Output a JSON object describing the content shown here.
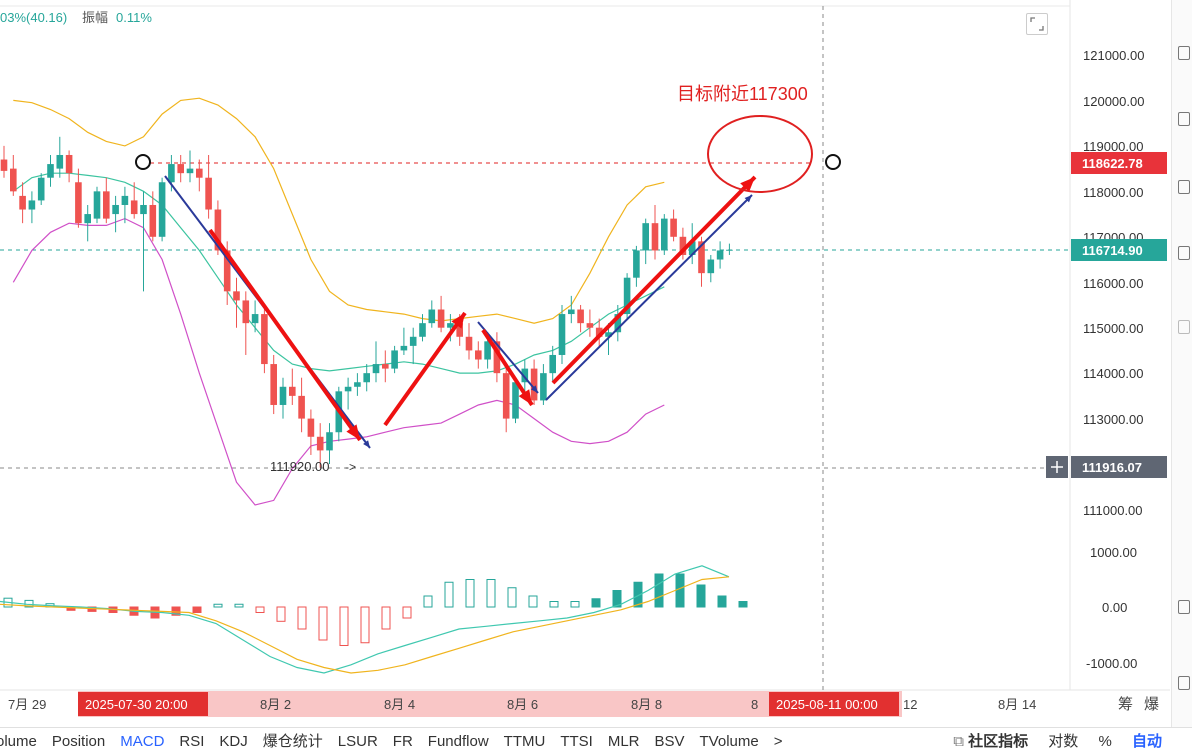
{
  "header": {
    "change_text": "03%(40.16)",
    "amplitude_label": "振幅",
    "amplitude_value": "0.11%"
  },
  "annotation": {
    "target_text": "目标附近117300",
    "low_marker": "111920.00"
  },
  "price_axis": {
    "labels": [
      "121000.00",
      "120000.00",
      "119000.00",
      "118000.00",
      "117000.00",
      "116000.00",
      "115000.00",
      "114000.00",
      "113000.00",
      "111000.00"
    ]
  },
  "macd_axis": {
    "labels": [
      "1000.00",
      "0.00",
      "-1000.00"
    ]
  },
  "badges": {
    "red_level": "118622.78",
    "current_price": "116714.90",
    "crosshair_price": "111916.07",
    "date_left": "2025-07-30 20:00",
    "date_right": "2025-08-11 00:00"
  },
  "date_axis": {
    "labels": [
      "7月 29",
      "8月 2",
      "8月 4",
      "8月 6",
      "8月 8",
      "8",
      "12",
      "8月 14"
    ],
    "right_icons": [
      "筹",
      "爆"
    ]
  },
  "indicator_tabs": [
    "olume",
    "Position",
    "MACD",
    "RSI",
    "KDJ",
    "爆仓统计",
    "LSUR",
    "FR",
    "Fundflow",
    "TTMU",
    "TTSI",
    "MLR",
    "BSV",
    "TVolume",
    ">"
  ],
  "active_tab": "MACD",
  "bottom_right": {
    "community": "社区指标",
    "log": "对数",
    "percent": "%",
    "auto": "自动"
  },
  "colors": {
    "up": "#26a69a",
    "down": "#ef5350",
    "boll_upper": "#f0b41e",
    "boll_mid": "#3cc4a0",
    "boll_lower": "#d050c8",
    "arrow_red": "#ee1111",
    "arrow_blue": "#2a3a9a",
    "badge_red": "#e8333a",
    "badge_green": "#26a69a",
    "badge_gray": "#5f6673",
    "date_badge": "#e23030",
    "date_band": "#f9c6c6",
    "macd_dif": "#40c8b0",
    "macd_dea": "#f0b41e"
  },
  "chart_data": {
    "type": "candlestick",
    "x_range": [
      "2025-07-29",
      "2025-08-14"
    ],
    "y_range": [
      110500,
      121500
    ],
    "candles": [
      {
        "o": 118700,
        "h": 119000,
        "l": 118300,
        "c": 118450
      },
      {
        "o": 118500,
        "h": 118800,
        "l": 117900,
        "c": 118000
      },
      {
        "o": 117900,
        "h": 118200,
        "l": 117300,
        "c": 117600
      },
      {
        "o": 117600,
        "h": 118000,
        "l": 117300,
        "c": 117800
      },
      {
        "o": 117800,
        "h": 118400,
        "l": 117700,
        "c": 118300
      },
      {
        "o": 118300,
        "h": 118800,
        "l": 118100,
        "c": 118600
      },
      {
        "o": 118500,
        "h": 119200,
        "l": 118300,
        "c": 118800
      },
      {
        "o": 118800,
        "h": 118900,
        "l": 118200,
        "c": 118400
      },
      {
        "o": 118200,
        "h": 118500,
        "l": 117200,
        "c": 117300
      },
      {
        "o": 117300,
        "h": 117700,
        "l": 116900,
        "c": 117500
      },
      {
        "o": 117400,
        "h": 118100,
        "l": 117300,
        "c": 118000
      },
      {
        "o": 118000,
        "h": 118300,
        "l": 117300,
        "c": 117400
      },
      {
        "o": 117500,
        "h": 117900,
        "l": 117100,
        "c": 117700
      },
      {
        "o": 117700,
        "h": 118100,
        "l": 117300,
        "c": 117900
      },
      {
        "o": 117800,
        "h": 118200,
        "l": 117400,
        "c": 117500
      },
      {
        "o": 117500,
        "h": 118000,
        "l": 115800,
        "c": 117700
      },
      {
        "o": 117700,
        "h": 118000,
        "l": 116900,
        "c": 117000
      },
      {
        "o": 117000,
        "h": 118300,
        "l": 116900,
        "c": 118200
      },
      {
        "o": 118200,
        "h": 118800,
        "l": 118000,
        "c": 118600
      },
      {
        "o": 118600,
        "h": 118800,
        "l": 118200,
        "c": 118400
      },
      {
        "o": 118400,
        "h": 118900,
        "l": 118200,
        "c": 118500
      },
      {
        "o": 118500,
        "h": 118700,
        "l": 118000,
        "c": 118300
      },
      {
        "o": 118300,
        "h": 118800,
        "l": 117400,
        "c": 117600
      },
      {
        "o": 117600,
        "h": 117800,
        "l": 116600,
        "c": 116700
      },
      {
        "o": 116700,
        "h": 116900,
        "l": 115500,
        "c": 115800
      },
      {
        "o": 115800,
        "h": 116100,
        "l": 115000,
        "c": 115600
      },
      {
        "o": 115600,
        "h": 115800,
        "l": 114400,
        "c": 115100
      },
      {
        "o": 115100,
        "h": 115600,
        "l": 114900,
        "c": 115300
      },
      {
        "o": 115300,
        "h": 115500,
        "l": 114000,
        "c": 114200
      },
      {
        "o": 114200,
        "h": 114400,
        "l": 113100,
        "c": 113300
      },
      {
        "o": 113300,
        "h": 113900,
        "l": 113000,
        "c": 113700
      },
      {
        "o": 113700,
        "h": 114100,
        "l": 113300,
        "c": 113500
      },
      {
        "o": 113500,
        "h": 113900,
        "l": 112700,
        "c": 113000
      },
      {
        "o": 113000,
        "h": 113200,
        "l": 112200,
        "c": 112600
      },
      {
        "o": 112600,
        "h": 112900,
        "l": 111920,
        "c": 112300
      },
      {
        "o": 112300,
        "h": 112900,
        "l": 112000,
        "c": 112700
      },
      {
        "o": 112700,
        "h": 113700,
        "l": 112500,
        "c": 113600
      },
      {
        "o": 113600,
        "h": 113900,
        "l": 113200,
        "c": 113700
      },
      {
        "o": 113700,
        "h": 114000,
        "l": 113500,
        "c": 113800
      },
      {
        "o": 113800,
        "h": 114200,
        "l": 113600,
        "c": 114000
      },
      {
        "o": 114000,
        "h": 114700,
        "l": 113800,
        "c": 114200
      },
      {
        "o": 114200,
        "h": 114500,
        "l": 113800,
        "c": 114100
      },
      {
        "o": 114100,
        "h": 114600,
        "l": 114000,
        "c": 114500
      },
      {
        "o": 114500,
        "h": 115000,
        "l": 114400,
        "c": 114600
      },
      {
        "o": 114600,
        "h": 115000,
        "l": 114200,
        "c": 114800
      },
      {
        "o": 114800,
        "h": 115300,
        "l": 114700,
        "c": 115100
      },
      {
        "o": 115100,
        "h": 115600,
        "l": 115000,
        "c": 115400
      },
      {
        "o": 115400,
        "h": 115700,
        "l": 114900,
        "c": 115000
      },
      {
        "o": 115000,
        "h": 115300,
        "l": 114700,
        "c": 115100
      },
      {
        "o": 115100,
        "h": 115300,
        "l": 114600,
        "c": 114800
      },
      {
        "o": 114800,
        "h": 115100,
        "l": 114300,
        "c": 114500
      },
      {
        "o": 114500,
        "h": 114700,
        "l": 114100,
        "c": 114300
      },
      {
        "o": 114300,
        "h": 114900,
        "l": 114100,
        "c": 114700
      },
      {
        "o": 114700,
        "h": 114900,
        "l": 113800,
        "c": 114000
      },
      {
        "o": 114000,
        "h": 114200,
        "l": 112700,
        "c": 113000
      },
      {
        "o": 113000,
        "h": 113900,
        "l": 112900,
        "c": 113800
      },
      {
        "o": 113800,
        "h": 114300,
        "l": 113500,
        "c": 114100
      },
      {
        "o": 114100,
        "h": 114300,
        "l": 113300,
        "c": 113400
      },
      {
        "o": 113400,
        "h": 114200,
        "l": 113300,
        "c": 114000
      },
      {
        "o": 114000,
        "h": 114600,
        "l": 113800,
        "c": 114400
      },
      {
        "o": 114400,
        "h": 115500,
        "l": 114200,
        "c": 115300
      },
      {
        "o": 115300,
        "h": 115700,
        "l": 115100,
        "c": 115400
      },
      {
        "o": 115400,
        "h": 115500,
        "l": 114900,
        "c": 115100
      },
      {
        "o": 115100,
        "h": 115400,
        "l": 114800,
        "c": 115000
      },
      {
        "o": 115000,
        "h": 115200,
        "l": 114600,
        "c": 114800
      },
      {
        "o": 114800,
        "h": 115100,
        "l": 114400,
        "c": 114900
      },
      {
        "o": 114900,
        "h": 115500,
        "l": 114700,
        "c": 115300
      },
      {
        "o": 115300,
        "h": 116200,
        "l": 115200,
        "c": 116100
      },
      {
        "o": 116100,
        "h": 116800,
        "l": 115900,
        "c": 116700
      },
      {
        "o": 116700,
        "h": 117400,
        "l": 116400,
        "c": 117300
      },
      {
        "o": 117300,
        "h": 117700,
        "l": 116500,
        "c": 116700
      },
      {
        "o": 116700,
        "h": 117500,
        "l": 116600,
        "c": 117400
      },
      {
        "o": 117400,
        "h": 117600,
        "l": 116900,
        "c": 117000
      },
      {
        "o": 117000,
        "h": 117200,
        "l": 116500,
        "c": 116600
      },
      {
        "o": 116600,
        "h": 117300,
        "l": 116400,
        "c": 116900
      },
      {
        "o": 116900,
        "h": 117000,
        "l": 115900,
        "c": 116200
      },
      {
        "o": 116200,
        "h": 116600,
        "l": 116000,
        "c": 116500
      },
      {
        "o": 116500,
        "h": 116900,
        "l": 116300,
        "c": 116700
      },
      {
        "o": 116700,
        "h": 116850,
        "l": 116600,
        "c": 116715
      }
    ],
    "boll_upper": [
      120000,
      119950,
      119800,
      119600,
      119300,
      119100,
      119000,
      119200,
      119700,
      120000,
      120050,
      119900,
      119600,
      119200,
      118500,
      117500,
      116500,
      115800,
      115500,
      115400,
      115350,
      115300,
      115200,
      115150,
      115200,
      115250,
      115300,
      115200,
      115100,
      115200,
      115500,
      116200,
      117000,
      117700,
      118100,
      118200
    ],
    "boll_mid": [
      118000,
      118300,
      118400,
      118400,
      118350,
      118300,
      118200,
      118000,
      117700,
      117200,
      116700,
      116100,
      115500,
      115000,
      114500,
      114200,
      114100,
      114050,
      114100,
      114150,
      114200,
      114250,
      114200,
      114100,
      114000,
      114000,
      114050,
      114200,
      114400,
      114500,
      114700,
      115000,
      115300,
      115500,
      115700,
      115900
    ],
    "boll_lower": [
      116000,
      116700,
      117100,
      117300,
      117250,
      117250,
      117400,
      117200,
      116500,
      115300,
      114000,
      112800,
      111600,
      111100,
      111200,
      111900,
      112400,
      112500,
      112550,
      112600,
      112700,
      112800,
      112850,
      112900,
      113100,
      113300,
      113400,
      113300,
      113000,
      112700,
      112500,
      112450,
      112500,
      112700,
      113100,
      113300
    ],
    "macd_hist": [
      160,
      120,
      60,
      -60,
      -80,
      -100,
      -150,
      -200,
      -150,
      -100,
      50,
      50,
      -100,
      -260,
      -400,
      -600,
      -700,
      -650,
      -400,
      -200,
      200,
      450,
      500,
      500,
      350,
      200,
      100,
      100,
      150,
      300,
      450,
      600,
      600,
      400,
      200,
      100
    ],
    "macd_dif": [
      100,
      50,
      20,
      0,
      -30,
      -80,
      -100,
      -150,
      -300,
      -600,
      -900,
      -1100,
      -1200,
      -1050,
      -850,
      -700,
      -550,
      -400,
      -350,
      -300,
      -250,
      -200,
      -100,
      50,
      300,
      600,
      750,
      550
    ],
    "macd_dea": [
      50,
      20,
      0,
      -20,
      -40,
      -60,
      -80,
      -100,
      -250,
      -450,
      -700,
      -950,
      -1100,
      -1200,
      -1150,
      -1050,
      -900,
      -750,
      -600,
      -450,
      -350,
      -250,
      -150,
      -50,
      100,
      300,
      500,
      550
    ]
  }
}
